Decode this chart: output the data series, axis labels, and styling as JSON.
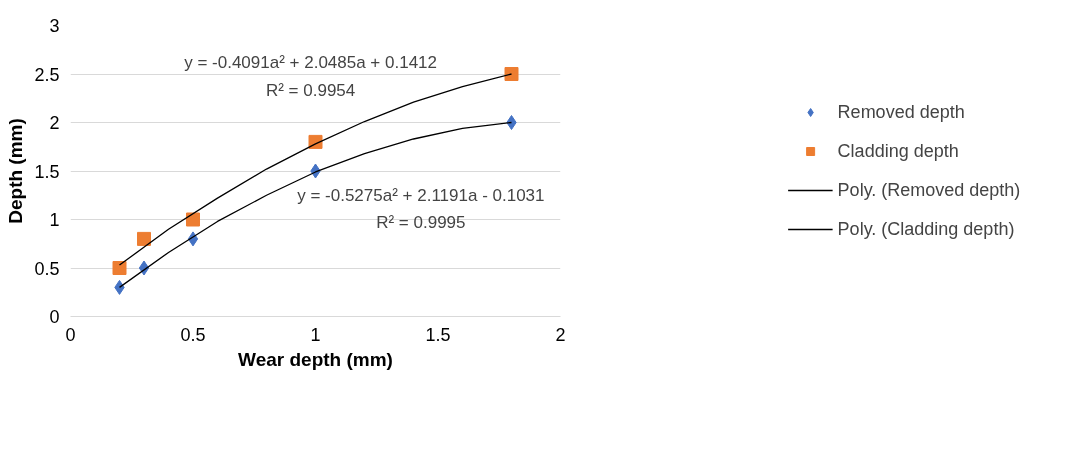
{
  "chart_data": {
    "type": "scatter",
    "xlabel": "Wear depth (mm)",
    "ylabel": "Depth (mm)",
    "xlim": [
      0,
      2
    ],
    "ylim": [
      0,
      3
    ],
    "xticks": [
      0,
      0.5,
      1,
      1.5,
      2
    ],
    "yticks": [
      0,
      0.5,
      1,
      1.5,
      2,
      2.5,
      3
    ],
    "grid": "y",
    "legend": "right",
    "series": [
      {
        "name": "Removed depth",
        "marker": "diamond",
        "color": "#4472c4",
        "x": [
          0.2,
          0.3,
          0.5,
          1,
          1.8
        ],
        "values": [
          0.3,
          0.5,
          0.8,
          1.5,
          2
        ]
      },
      {
        "name": "Cladding depth",
        "marker": "square",
        "color": "#ed7d31",
        "x": [
          0.2,
          0.3,
          0.5,
          1,
          1.8
        ],
        "values": [
          0.5,
          0.8,
          1,
          1.8,
          2.5
        ]
      },
      {
        "name": "Poly. (Removed depth)",
        "type": "line",
        "color": "#000000",
        "x": [
          0.2,
          0.4,
          0.6,
          0.8,
          1.0,
          1.2,
          1.4,
          1.6,
          1.8
        ],
        "values": [
          0.3,
          0.66,
          0.98,
          1.25,
          1.49,
          1.68,
          1.83,
          1.94,
          2.0
        ]
      },
      {
        "name": "Poly. (Cladding depth)",
        "type": "line",
        "color": "#000000",
        "x": [
          0.2,
          0.4,
          0.6,
          0.8,
          1.0,
          1.2,
          1.4,
          1.6,
          1.8
        ],
        "values": [
          0.53,
          0.9,
          1.22,
          1.52,
          1.78,
          2.01,
          2.21,
          2.37,
          2.5
        ]
      }
    ],
    "annotations": [
      "y = -0.4091a² + 2.0485a + 0.1412",
      "R² = 0.9954",
      "y = -0.5275a² + 2.1191a - 0.1031",
      "R² = 0.9995"
    ]
  }
}
